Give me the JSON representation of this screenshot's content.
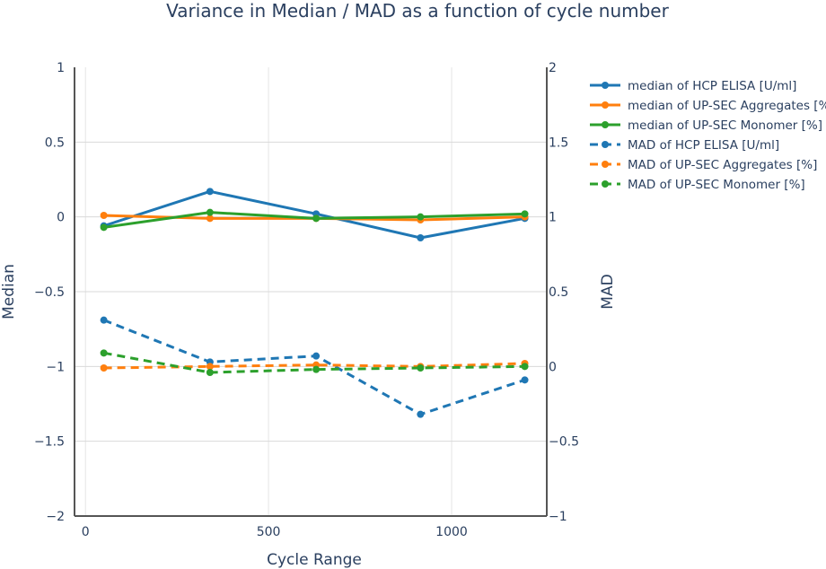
{
  "chart_data": {
    "type": "line",
    "title": "Variance in Median / MAD as a function of cycle number",
    "xlabel": "Cycle Range",
    "ylabel_left": "Median",
    "ylabel_right": "MAD",
    "xlim": [
      -30,
      1260
    ],
    "ylim_left": [
      -2,
      1
    ],
    "ylim_right": [
      -1,
      2
    ],
    "x_ticks": [
      0,
      500,
      1000
    ],
    "x_tick_labels": [
      "0",
      "500",
      "1000"
    ],
    "y_left_ticks": [
      1,
      0.5,
      0,
      -0.5,
      -1,
      -1.5,
      -2
    ],
    "y_left_tick_labels": [
      "1",
      "0.5",
      "0",
      "−0.5",
      "−1",
      "−1.5",
      "−2"
    ],
    "y_right_ticks": [
      2,
      1.5,
      1,
      0.5,
      0,
      -0.5,
      -1
    ],
    "y_right_tick_labels": [
      "2",
      "1.5",
      "1",
      "0.5",
      "0",
      "−0.5",
      "−1"
    ],
    "x": [
      50,
      340,
      630,
      915,
      1200
    ],
    "series": [
      {
        "name": "median of HCP ELISA [U/ml]",
        "axis": "left",
        "dash": "solid",
        "color": "#1f77b4",
        "values": [
          -0.06,
          0.17,
          0.02,
          -0.14,
          -0.01
        ]
      },
      {
        "name": "median of UP-SEC Aggregates [%]",
        "axis": "left",
        "dash": "solid",
        "color": "#ff7f0e",
        "values": [
          0.01,
          -0.01,
          -0.01,
          -0.02,
          0.0
        ]
      },
      {
        "name": "median of UP-SEC Monomer [%]",
        "axis": "left",
        "dash": "solid",
        "color": "#2ca02c",
        "values": [
          -0.07,
          0.03,
          -0.01,
          0.0,
          0.02
        ]
      },
      {
        "name": "MAD of HCP ELISA [U/ml]",
        "axis": "right",
        "dash": "dash",
        "color": "#1f77b4",
        "values": [
          0.31,
          0.03,
          0.07,
          -0.32,
          -0.09
        ]
      },
      {
        "name": "MAD of UP-SEC Aggregates [%]",
        "axis": "right",
        "dash": "dash",
        "color": "#ff7f0e",
        "values": [
          -0.01,
          0.0,
          0.01,
          0.0,
          0.02
        ]
      },
      {
        "name": "MAD of UP-SEC Monomer [%]",
        "axis": "right",
        "dash": "dash",
        "color": "#2ca02c",
        "values": [
          0.09,
          -0.04,
          -0.02,
          -0.01,
          0.0
        ]
      }
    ],
    "legend_position": "right",
    "grid": true
  }
}
